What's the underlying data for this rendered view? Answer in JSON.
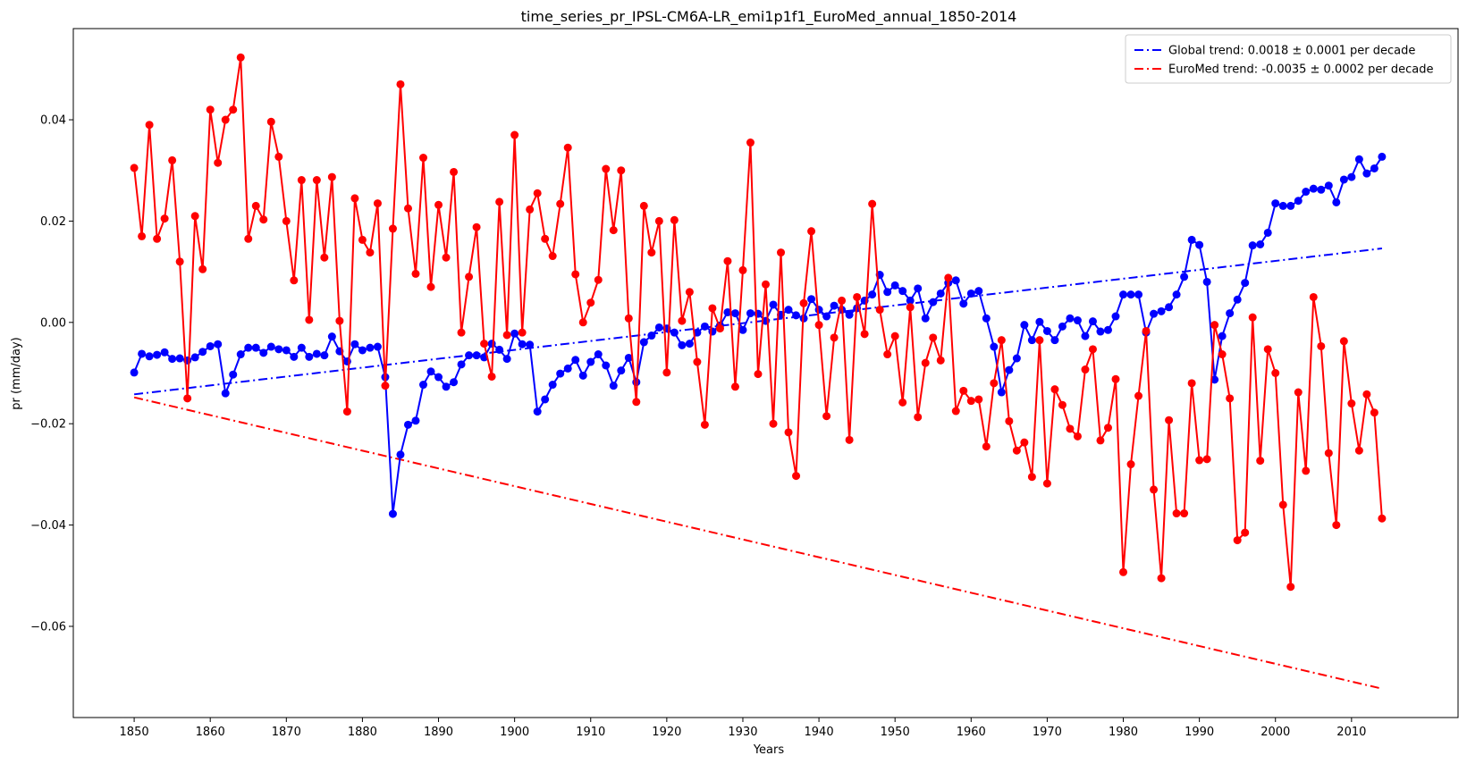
{
  "chart_data": {
    "type": "line",
    "title": "time_series_pr_IPSL-CM6A-LR_emi1p1f1_EuroMed_annual_1850-2014",
    "xlabel": "Years",
    "ylabel": "pr (mm/day)",
    "xlim": [
      1842,
      2024
    ],
    "ylim": [
      -0.078,
      0.058
    ],
    "xticks": [
      1850,
      1860,
      1870,
      1880,
      1890,
      1900,
      1910,
      1920,
      1930,
      1940,
      1950,
      1960,
      1970,
      1980,
      1990,
      2000,
      2010
    ],
    "yticks": [
      -0.06,
      -0.04,
      -0.02,
      0.0,
      0.02,
      0.04
    ],
    "ytick_labels": [
      "−0.06",
      "−0.04",
      "−0.02",
      "0.00",
      "0.02",
      "0.04"
    ],
    "legend_position": "top-right",
    "grid": false,
    "x_start": 1850,
    "series": [
      {
        "color": "#0000ff",
        "marker": "circle",
        "values": [
          -0.0099,
          -0.0062,
          -0.0067,
          -0.0064,
          -0.0059,
          -0.0072,
          -0.0071,
          -0.0075,
          -0.0069,
          -0.0058,
          -0.0047,
          -0.0043,
          -0.014,
          -0.0103,
          -0.0063,
          -0.005,
          -0.005,
          -0.006,
          -0.0048,
          -0.0053,
          -0.0055,
          -0.0068,
          -0.005,
          -0.0068,
          -0.0062,
          -0.0065,
          -0.0028,
          -0.0057,
          -0.0077,
          -0.0043,
          -0.0055,
          -0.005,
          -0.0048,
          -0.0108,
          -0.0378,
          -0.0261,
          -0.0202,
          -0.0194,
          -0.0123,
          -0.0097,
          -0.0108,
          -0.0127,
          -0.0118,
          -0.0083,
          -0.0065,
          -0.0065,
          -0.0069,
          -0.0042,
          -0.0054,
          -0.0072,
          -0.0022,
          -0.0043,
          -0.0044,
          -0.0176,
          -0.0152,
          -0.0123,
          -0.0101,
          -0.0091,
          -0.0074,
          -0.0105,
          -0.0078,
          -0.0063,
          -0.0085,
          -0.0125,
          -0.0095,
          -0.007,
          -0.0118,
          -0.0039,
          -0.0026,
          -0.001,
          -0.0012,
          -0.002,
          -0.0045,
          -0.0042,
          -0.002,
          -0.0008,
          -0.0018,
          -0.0006,
          0.002,
          0.0018,
          -0.0015,
          0.0018,
          0.0017,
          0.0003,
          0.0035,
          0.0015,
          0.0025,
          0.0014,
          0.0008,
          0.0046,
          0.0025,
          0.0012,
          0.0033,
          0.0025,
          0.0015,
          0.0028,
          0.0043,
          0.0055,
          0.0094,
          0.006,
          0.0073,
          0.0062,
          0.0043,
          0.0067,
          0.0008,
          0.004,
          0.0057,
          0.0078,
          0.0083,
          0.0037,
          0.0057,
          0.0062,
          0.0008,
          -0.0048,
          -0.0138,
          -0.0094,
          -0.0071,
          -0.0005,
          -0.0035,
          0.0001,
          -0.0017,
          -0.0035,
          -0.0008,
          0.0008,
          0.0004,
          -0.0027,
          0.0002,
          -0.0018,
          -0.0015,
          0.0012,
          0.0055,
          0.0055,
          0.0055,
          -0.002,
          0.0017,
          0.0022,
          0.003,
          0.0055,
          0.009,
          0.0163,
          0.0153,
          0.008,
          -0.0113,
          -0.0027,
          0.0018,
          0.0045,
          0.0078,
          0.0152,
          0.0154,
          0.0177,
          0.0235,
          0.023,
          0.023,
          0.024,
          0.0258,
          0.0264,
          0.0262,
          0.027,
          0.0237,
          0.0282,
          0.0287,
          0.0322,
          0.0294,
          0.0304,
          0.0327
        ]
      },
      {
        "color": "#ff0000",
        "marker": "circle",
        "values": [
          0.0305,
          0.017,
          0.039,
          0.0165,
          0.0205,
          0.032,
          0.012,
          -0.015,
          0.021,
          0.0105,
          0.042,
          0.0315,
          0.04,
          0.042,
          0.0523,
          0.0165,
          0.023,
          0.0203,
          0.0396,
          0.0327,
          0.02,
          0.0083,
          0.0281,
          0.0005,
          0.0281,
          0.0128,
          0.0287,
          0.0003,
          -0.0176,
          0.0245,
          0.0163,
          0.0138,
          0.0235,
          -0.0125,
          0.0185,
          0.047,
          0.0225,
          0.0096,
          0.0325,
          0.007,
          0.0232,
          0.0128,
          0.0297,
          -0.002,
          0.009,
          0.0188,
          -0.0042,
          -0.0107,
          0.0238,
          -0.0025,
          0.037,
          -0.002,
          0.0223,
          0.0255,
          0.0165,
          0.0131,
          0.0234,
          0.0345,
          0.0095,
          0.0,
          0.0039,
          0.0084,
          0.0303,
          0.0182,
          0.03,
          0.0008,
          -0.0157,
          0.023,
          0.0138,
          0.02,
          -0.0099,
          0.0202,
          0.0003,
          0.006,
          -0.0078,
          -0.0202,
          0.0028,
          -0.0012,
          0.0121,
          -0.0127,
          0.0103,
          0.0355,
          -0.0102,
          0.0075,
          -0.02,
          0.0138,
          -0.0217,
          -0.0303,
          0.0038,
          0.018,
          -0.0005,
          -0.0185,
          -0.003,
          0.0043,
          -0.0232,
          0.005,
          -0.0023,
          0.0234,
          0.0025,
          -0.0063,
          -0.0027,
          -0.0158,
          0.003,
          -0.0187,
          -0.008,
          -0.003,
          -0.0075,
          0.0088,
          -0.0175,
          -0.0135,
          -0.0155,
          -0.0152,
          -0.0245,
          -0.012,
          -0.0035,
          -0.0195,
          -0.0253,
          -0.0237,
          -0.0305,
          -0.0035,
          -0.0318,
          -0.0132,
          -0.0163,
          -0.021,
          -0.0225,
          -0.0093,
          -0.0053,
          -0.0233,
          -0.0208,
          -0.0112,
          -0.0493,
          -0.028,
          -0.0145,
          -0.0017,
          -0.033,
          -0.0505,
          -0.0193,
          -0.0377,
          -0.0377,
          -0.012,
          -0.0272,
          -0.027,
          -0.0005,
          -0.0063,
          -0.015,
          -0.043,
          -0.0415,
          0.001,
          -0.0273,
          -0.0053,
          -0.01,
          -0.036,
          -0.0522,
          -0.0138,
          -0.0293,
          0.005,
          -0.0047,
          -0.0258,
          -0.04,
          -0.0037,
          -0.016,
          -0.0253,
          -0.0142,
          -0.0178,
          -0.0387
        ]
      },
      {
        "name": "Global trend: 0.0018 ± 0.0001 per decade",
        "color": "#0000ff",
        "style": "dashdot",
        "x": [
          1850,
          2014
        ],
        "values": [
          -0.0142,
          0.0146
        ]
      },
      {
        "name": "EuroMed trend: -0.0035 ± 0.0002 per decade",
        "color": "#ff0000",
        "style": "dashdot",
        "x": [
          1850,
          2014
        ],
        "values": [
          -0.0148,
          -0.0723
        ]
      }
    ]
  }
}
